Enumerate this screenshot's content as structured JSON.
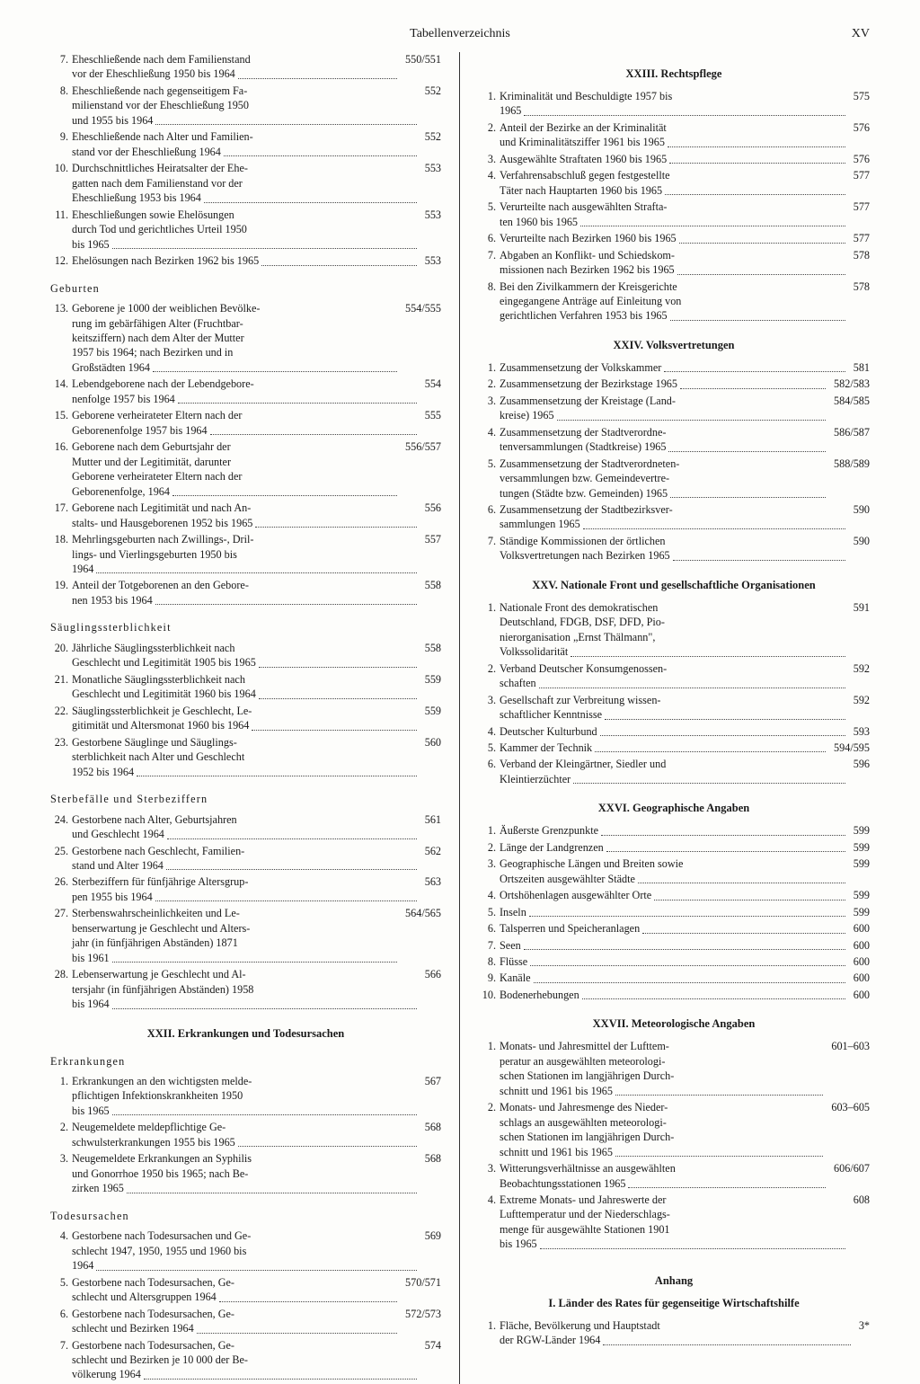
{
  "header": "Tabellenverzeichnis",
  "pagenum": "XV",
  "left": {
    "top_entries": [
      {
        "n": "7.",
        "lines": [
          "Eheschließende nach dem Familienstand"
        ],
        "last": "vor der Eheschließung 1950 bis 1964",
        "pg": "550/551"
      },
      {
        "n": "8.",
        "lines": [
          "Eheschließende nach gegenseitigem Fa-",
          "milienstand vor der Eheschließung 1950"
        ],
        "last": "und 1955 bis 1964",
        "pg": "552"
      },
      {
        "n": "9.",
        "lines": [
          "Eheschließende nach Alter und Familien-"
        ],
        "last": "stand vor der Eheschließung 1964",
        "pg": "552"
      },
      {
        "n": "10.",
        "lines": [
          "Durchschnittliches Heiratsalter der Ehe-",
          "gatten nach dem Familienstand vor der"
        ],
        "last": "Eheschließung 1953 bis 1964",
        "pg": "553"
      },
      {
        "n": "11.",
        "lines": [
          "Eheschließungen sowie Ehelösungen",
          "durch Tod und gerichtliches Urteil 1950"
        ],
        "last": "bis 1965",
        "pg": "553"
      },
      {
        "n": "12.",
        "lines": [],
        "last": "Ehelösungen nach Bezirken 1962 bis 1965",
        "pg": "553"
      }
    ],
    "sub1": "Geburten",
    "sub1_entries": [
      {
        "n": "13.",
        "lines": [
          "Geborene je 1000 der weiblichen Bevölke-",
          "rung im gebärfähigen Alter (Fruchtbar-",
          "keitsziffern) nach dem Alter der Mutter",
          "1957 bis 1964; nach Bezirken und in"
        ],
        "last": "Großstädten 1964",
        "pg": "554/555"
      },
      {
        "n": "14.",
        "lines": [
          "Lebendgeborene nach der Lebendgebore-"
        ],
        "last": "nenfolge 1957 bis 1964",
        "pg": "554"
      },
      {
        "n": "15.",
        "lines": [
          "Geborene verheirateter Eltern nach der"
        ],
        "last": "Geborenenfolge 1957 bis 1964",
        "pg": "555"
      },
      {
        "n": "16.",
        "lines": [
          "Geborene nach dem Geburtsjahr der",
          "Mutter und der Legitimität, darunter",
          "Geborene verheirateter Eltern nach der"
        ],
        "last": "Geborenenfolge, 1964",
        "pg": "556/557"
      },
      {
        "n": "17.",
        "lines": [
          "Geborene nach Legitimität und nach An-"
        ],
        "last": "stalts- und Hausgeborenen 1952 bis 1965",
        "pg": "556"
      },
      {
        "n": "18.",
        "lines": [
          "Mehrlingsgeburten nach Zwillings-, Dril-",
          "lings- und Vierlingsgeburten 1950 bis"
        ],
        "last": "1964",
        "pg": "557"
      },
      {
        "n": "19.",
        "lines": [
          "Anteil der Totgeborenen an den Gebore-"
        ],
        "last": "nen 1953 bis 1964",
        "pg": "558"
      }
    ],
    "sub2": "Säuglingssterblichkeit",
    "sub2_entries": [
      {
        "n": "20.",
        "lines": [
          "Jährliche Säuglingssterblichkeit nach"
        ],
        "last": "Geschlecht und Legitimität 1905 bis 1965",
        "pg": "558"
      },
      {
        "n": "21.",
        "lines": [
          "Monatliche Säuglingssterblichkeit nach"
        ],
        "last": "Geschlecht und Legitimität 1960 bis 1964",
        "pg": "559"
      },
      {
        "n": "22.",
        "lines": [
          "Säuglingssterblichkeit je Geschlecht, Le-"
        ],
        "last": "gitimität und Altersmonat 1960 bis 1964",
        "pg": "559"
      },
      {
        "n": "23.",
        "lines": [
          "Gestorbene Säuglinge und Säuglings-",
          "sterblichkeit nach Alter und Geschlecht"
        ],
        "last": "1952 bis 1964",
        "pg": "560"
      }
    ],
    "sub3": "Sterbefälle und Sterbeziffern",
    "sub3_entries": [
      {
        "n": "24.",
        "lines": [
          "Gestorbene nach Alter, Geburtsjahren"
        ],
        "last": "und Geschlecht 1964",
        "pg": "561"
      },
      {
        "n": "25.",
        "lines": [
          "Gestorbene nach Geschlecht, Familien-"
        ],
        "last": "stand und Alter 1964",
        "pg": "562"
      },
      {
        "n": "26.",
        "lines": [
          "Sterbeziffern für fünfjährige Altersgrup-"
        ],
        "last": "pen 1955 bis 1964",
        "pg": "563"
      },
      {
        "n": "27.",
        "lines": [
          "Sterbenswahrscheinlichkeiten und Le-",
          "benserwartung je Geschlecht und Alters-",
          "jahr (in fünfjährigen Abständen) 1871"
        ],
        "last": "bis 1961",
        "pg": "564/565"
      },
      {
        "n": "28.",
        "lines": [
          "Lebenserwartung je Geschlecht und Al-",
          "tersjahr (in fünfjährigen Abständen) 1958"
        ],
        "last": "bis 1964",
        "pg": "566"
      }
    ],
    "sec22": "XXII. Erkrankungen und Todesursachen",
    "sub4": "Erkrankungen",
    "sub4_entries": [
      {
        "n": "1.",
        "lines": [
          "Erkrankungen an den wichtigsten melde-",
          "pflichtigen Infektionskrankheiten 1950"
        ],
        "last": "bis 1965",
        "pg": "567"
      },
      {
        "n": "2.",
        "lines": [
          "Neugemeldete meldepflichtige Ge-"
        ],
        "last": "schwulsterkrankungen 1955 bis 1965",
        "pg": "568"
      },
      {
        "n": "3.",
        "lines": [
          "Neugemeldete Erkrankungen an Syphilis",
          "und Gonorrhoe 1950 bis 1965; nach Be-"
        ],
        "last": "zirken 1965",
        "pg": "568"
      }
    ],
    "sub5": "Todesursachen",
    "sub5_entries": [
      {
        "n": "4.",
        "lines": [
          "Gestorbene nach Todesursachen und Ge-",
          "schlecht 1947, 1950, 1955 und 1960 bis"
        ],
        "last": "1964",
        "pg": "569"
      },
      {
        "n": "5.",
        "lines": [
          "Gestorbene nach Todesursachen, Ge-"
        ],
        "last": "schlecht und Altersgruppen 1964",
        "pg": "570/571"
      },
      {
        "n": "6.",
        "lines": [
          "Gestorbene nach Todesursachen, Ge-"
        ],
        "last": "schlecht und Bezirken 1964",
        "pg": "572/573"
      },
      {
        "n": "7.",
        "lines": [
          "Gestorbene nach Todesursachen, Ge-",
          "schlecht und Bezirken je 10 000 der Be-"
        ],
        "last": "völkerung 1964",
        "pg": "574"
      }
    ]
  },
  "right": {
    "sec23": "XXIII. Rechtspflege",
    "sec23_entries": [
      {
        "n": "1.",
        "lines": [
          "Kriminalität und Beschuldigte 1957 bis"
        ],
        "last": "1965",
        "pg": "575"
      },
      {
        "n": "2.",
        "lines": [
          "Anteil der Bezirke an der Kriminalität"
        ],
        "last": "und Kriminalitätsziffer 1961 bis 1965",
        "pg": "576"
      },
      {
        "n": "3.",
        "lines": [],
        "last": "Ausgewählte Straftaten 1960 bis 1965",
        "pg": "576"
      },
      {
        "n": "4.",
        "lines": [
          "Verfahrensabschluß gegen festgestellte"
        ],
        "last": "Täter nach Hauptarten 1960 bis 1965",
        "pg": "577"
      },
      {
        "n": "5.",
        "lines": [
          "Verurteilte nach ausgewählten Strafta-"
        ],
        "last": "ten 1960 bis 1965",
        "pg": "577"
      },
      {
        "n": "6.",
        "lines": [],
        "last": "Verurteilte nach Bezirken 1960 bis 1965",
        "pg": "577"
      },
      {
        "n": "7.",
        "lines": [
          "Abgaben an Konflikt- und Schiedskom-"
        ],
        "last": "missionen nach Bezirken 1962 bis 1965",
        "pg": "578"
      },
      {
        "n": "8.",
        "lines": [
          "Bei den Zivilkammern der Kreisgerichte",
          "eingegangene Anträge auf Einleitung von"
        ],
        "last": "gerichtlichen Verfahren 1953 bis 1965",
        "pg": "578"
      }
    ],
    "sec24": "XXIV. Volksvertretungen",
    "sec24_entries": [
      {
        "n": "1.",
        "lines": [],
        "last": "Zusammensetzung der Volkskammer",
        "pg": "581"
      },
      {
        "n": "2.",
        "lines": [],
        "last": "Zusammensetzung der Bezirkstage 1965",
        "pg": "582/583"
      },
      {
        "n": "3.",
        "lines": [
          "Zusammensetzung der Kreistage (Land-"
        ],
        "last": "kreise) 1965",
        "pg": "584/585"
      },
      {
        "n": "4.",
        "lines": [
          "Zusammensetzung der Stadtverordne-"
        ],
        "last": "tenversammlungen (Stadtkreise) 1965",
        "pg": "586/587"
      },
      {
        "n": "5.",
        "lines": [
          "Zusammensetzung der Stadtverordneten-",
          "versammlungen bzw. Gemeindevertre-"
        ],
        "last": "tungen (Städte bzw. Gemeinden) 1965",
        "pg": "588/589"
      },
      {
        "n": "6.",
        "lines": [
          "Zusammensetzung der Stadtbezirksver-"
        ],
        "last": "sammlungen 1965",
        "pg": "590"
      },
      {
        "n": "7.",
        "lines": [
          "Ständige Kommissionen der örtlichen"
        ],
        "last": "Volksvertretungen nach Bezirken 1965",
        "pg": "590"
      }
    ],
    "sec25": "XXV. Nationale Front und gesellschaftliche Organisationen",
    "sec25_entries": [
      {
        "n": "1.",
        "lines": [
          "Nationale Front des demokratischen",
          "Deutschland, FDGB, DSF, DFD, Pio-",
          "nierorganisation „Ernst Thälmann\","
        ],
        "last": "Volkssolidarität",
        "pg": "591"
      },
      {
        "n": "2.",
        "lines": [
          "Verband Deutscher Konsumgenossen-"
        ],
        "last": "schaften",
        "pg": "592"
      },
      {
        "n": "3.",
        "lines": [
          "Gesellschaft zur Verbreitung wissen-"
        ],
        "last": "schaftlicher Kenntnisse",
        "pg": "592"
      },
      {
        "n": "4.",
        "lines": [],
        "last": "Deutscher Kulturbund",
        "pg": "593"
      },
      {
        "n": "5.",
        "lines": [],
        "last": "Kammer der Technik",
        "pg": "594/595"
      },
      {
        "n": "6.",
        "lines": [
          "Verband der Kleingärtner, Siedler und"
        ],
        "last": "Kleintierzüchter",
        "pg": "596"
      }
    ],
    "sec26": "XXVI. Geographische Angaben",
    "sec26_entries": [
      {
        "n": "1.",
        "lines": [],
        "last": "Äußerste Grenzpunkte",
        "pg": "599"
      },
      {
        "n": "2.",
        "lines": [],
        "last": "Länge der Landgrenzen",
        "pg": "599"
      },
      {
        "n": "3.",
        "lines": [
          "Geographische Längen und Breiten sowie"
        ],
        "last": "Ortszeiten ausgewählter Städte",
        "pg": "599"
      },
      {
        "n": "4.",
        "lines": [],
        "last": "Ortshöhenlagen ausgewählter Orte",
        "pg": "599"
      },
      {
        "n": "5.",
        "lines": [],
        "last": "Inseln",
        "pg": "599"
      },
      {
        "n": "6.",
        "lines": [],
        "last": "Talsperren und Speicheranlagen",
        "pg": "600"
      },
      {
        "n": "7.",
        "lines": [],
        "last": "Seen",
        "pg": "600"
      },
      {
        "n": "8.",
        "lines": [],
        "last": "Flüsse",
        "pg": "600"
      },
      {
        "n": "9.",
        "lines": [],
        "last": "Kanäle",
        "pg": "600"
      },
      {
        "n": "10.",
        "lines": [],
        "last": "Bodenerhebungen",
        "pg": "600"
      }
    ],
    "sec27": "XXVII. Meteorologische Angaben",
    "sec27_entries": [
      {
        "n": "1.",
        "lines": [
          "Monats- und Jahresmittel der Lufttem-",
          "peratur an ausgewählten meteorologi-",
          "schen Stationen im langjährigen Durch-"
        ],
        "last": "schnitt und 1961 bis 1965",
        "pg": "601–603"
      },
      {
        "n": "2.",
        "lines": [
          "Monats- und Jahresmenge des Nieder-",
          "schlags an ausgewählten meteorologi-",
          "schen Stationen im langjährigen Durch-"
        ],
        "last": "schnitt und 1961 bis 1965",
        "pg": "603–605"
      },
      {
        "n": "3.",
        "lines": [
          "Witterungsverhältnisse an ausgewählten"
        ],
        "last": "Beobachtungsstationen 1965",
        "pg": "606/607"
      },
      {
        "n": "4.",
        "lines": [
          "Extreme Monats- und Jahreswerte der",
          "Lufttemperatur und der Niederschlags-",
          "menge für ausgewählte Stationen 1901"
        ],
        "last": "bis 1965",
        "pg": "608"
      }
    ],
    "anhang": "Anhang",
    "anhang_sub": "I. Länder des Rates für gegenseitige Wirtschaftshilfe",
    "anhang_entries": [
      {
        "n": "1.",
        "lines": [
          "Fläche, Bevölkerung und Hauptstadt"
        ],
        "last": "der RGW-Länder 1964",
        "pg": "3*"
      }
    ]
  }
}
